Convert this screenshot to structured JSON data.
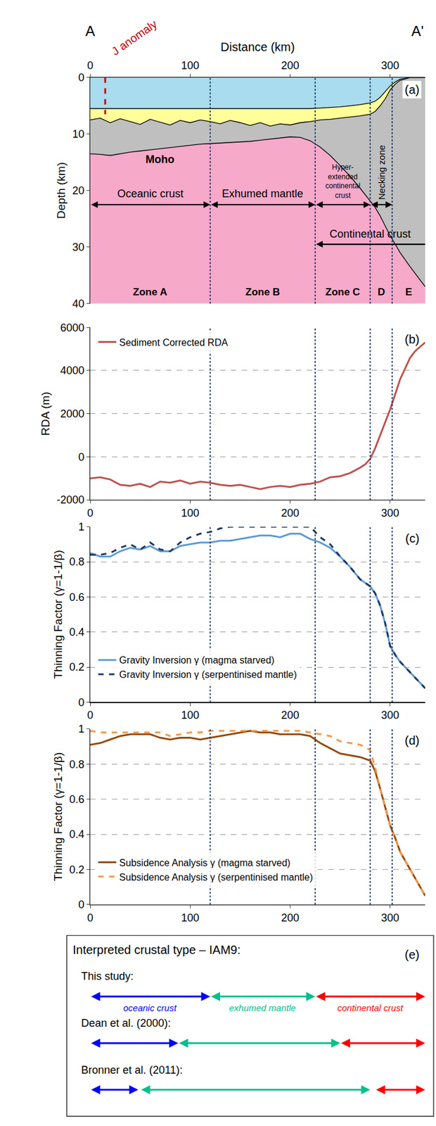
{
  "chart_data": [
    {
      "type": "section",
      "label": "(a)",
      "section": [
        "A",
        "A'"
      ],
      "x_label": "Distance (km)",
      "y_label": "Depth (km)",
      "xlim": [
        0,
        335
      ],
      "xticks": [
        0,
        100,
        200,
        300
      ],
      "ylim": [
        40,
        0
      ],
      "yticks": [
        0,
        10,
        20,
        30,
        40
      ],
      "grid": false,
      "color": "#f7a9c9",
      "x": [
        0,
        10,
        20,
        30,
        40,
        50,
        60,
        70,
        80,
        90,
        100,
        110,
        120,
        130,
        140,
        150,
        160,
        170,
        180,
        190,
        200,
        210,
        220,
        230,
        240,
        250,
        260,
        270,
        280,
        285,
        290,
        295,
        300,
        305,
        310,
        320,
        335
      ],
      "series": [
        {
          "color": "#a8dcee",
          "values": [
            5.5,
            5.5,
            5.5,
            5.5,
            5.5,
            5.5,
            5.5,
            5.5,
            5.5,
            5.5,
            5.5,
            5.5,
            5.5,
            5.5,
            5.5,
            5.5,
            5.5,
            5.5,
            5.5,
            5.5,
            5.5,
            5.5,
            5.5,
            5.4,
            5.3,
            5.2,
            5.0,
            4.8,
            4.5,
            4.2,
            3.5,
            2.5,
            1.5,
            0.8,
            0.3,
            0,
            0
          ]
        },
        {
          "color": "#ffff99",
          "values": [
            7.5,
            7.2,
            8.0,
            7.3,
            7.8,
            8.3,
            7.4,
            7.9,
            8.4,
            7.6,
            8.0,
            7.5,
            7.8,
            8.2,
            7.6,
            8.0,
            8.5,
            8.0,
            8.6,
            8.2,
            8.4,
            8.0,
            7.8,
            7.5,
            7.4,
            7.2,
            7.0,
            6.8,
            6.5,
            6.0,
            5.0,
            3.8,
            2.2,
            1.2,
            0.5,
            0,
            0
          ]
        },
        {
          "name": "Moho",
          "color": "#bfbfbf",
          "values": [
            13.5,
            13.6,
            13.8,
            13.5,
            13.2,
            13.0,
            12.8,
            12.6,
            12.4,
            12.2,
            12.0,
            11.8,
            11.7,
            11.6,
            11.5,
            11.4,
            11.3,
            11.1,
            10.9,
            10.7,
            10.5,
            10.6,
            11.2,
            12.3,
            13.8,
            15.6,
            17.5,
            19.6,
            21.8,
            23.0,
            24.5,
            26.2,
            28.0,
            29.5,
            31.0,
            33.5,
            37.0
          ]
        }
      ],
      "j_anomaly": {
        "label": "J anomaly",
        "x": 15,
        "depth": [
          0,
          6.5
        ],
        "color": "#c00000"
      },
      "domains": [
        {
          "label": "Oceanic crust",
          "from": 0,
          "to": 120
        },
        {
          "label": "Exhumed mantle",
          "from": 120,
          "to": 225
        },
        {
          "label": "Hyper-extended continental crust",
          "from": 225,
          "to": 280
        },
        {
          "label": "Necking zone",
          "from": 280,
          "to": 302
        }
      ],
      "continental_crust": {
        "label": "Continental crust",
        "from": 225,
        "to": 335
      },
      "zones": [
        {
          "label": "Zone A",
          "from": 0,
          "to": 120
        },
        {
          "label": "Zone B",
          "from": 120,
          "to": 225
        },
        {
          "label": "Zone C",
          "from": 225,
          "to": 280
        },
        {
          "label": "D",
          "from": 280,
          "to": 302
        },
        {
          "label": "E",
          "from": 302,
          "to": 335
        }
      ]
    },
    {
      "type": "line",
      "label": "(b)",
      "y_label": "RDA (m)",
      "xlim": [
        0,
        335
      ],
      "xticks": [
        0,
        100,
        200,
        300
      ],
      "ylim": [
        -2000,
        6000
      ],
      "yticks": [
        -2000,
        0,
        2000,
        4000,
        6000
      ],
      "grid": true,
      "legend": "top left",
      "x": [
        0,
        10,
        20,
        30,
        40,
        50,
        60,
        70,
        80,
        90,
        100,
        110,
        120,
        130,
        140,
        150,
        160,
        170,
        180,
        190,
        200,
        210,
        220,
        230,
        240,
        250,
        260,
        270,
        275,
        280,
        285,
        290,
        295,
        300,
        305,
        310,
        315,
        320,
        325,
        330,
        335
      ],
      "series": [
        {
          "name": "Sediment Corrected RDA",
          "color": "#c0504d",
          "line_style": "solid",
          "values": [
            -1000,
            -950,
            -1050,
            -1300,
            -1350,
            -1250,
            -1400,
            -1150,
            -1200,
            -1100,
            -1250,
            -1150,
            -1200,
            -1300,
            -1350,
            -1300,
            -1400,
            -1500,
            -1400,
            -1350,
            -1400,
            -1300,
            -1250,
            -1150,
            -950,
            -900,
            -750,
            -500,
            -350,
            -100,
            400,
            1000,
            1600,
            2200,
            2900,
            3600,
            4100,
            4600,
            4900,
            5100,
            5300
          ]
        }
      ]
    },
    {
      "type": "line",
      "label": "(c)",
      "y_label": "Thinning Factor (γ=1-1/β)",
      "xlim": [
        0,
        335
      ],
      "xticks": [
        0,
        100,
        200,
        300
      ],
      "ylim": [
        0,
        1
      ],
      "yticks": [
        0,
        0.2,
        0.4,
        0.6,
        0.8,
        1
      ],
      "grid": true,
      "legend": "bottom left",
      "x": [
        0,
        10,
        20,
        30,
        40,
        50,
        60,
        70,
        80,
        90,
        100,
        110,
        120,
        130,
        140,
        150,
        160,
        170,
        180,
        190,
        200,
        210,
        220,
        230,
        240,
        250,
        260,
        270,
        280,
        285,
        290,
        295,
        300,
        305,
        310,
        320,
        335
      ],
      "series": [
        {
          "name": "Gravity Inversion γ (magma starved)",
          "color": "#5b9bd5",
          "line_style": "solid",
          "values": [
            0.85,
            0.83,
            0.83,
            0.86,
            0.88,
            0.87,
            0.89,
            0.86,
            0.86,
            0.89,
            0.9,
            0.91,
            0.91,
            0.92,
            0.92,
            0.93,
            0.94,
            0.95,
            0.95,
            0.94,
            0.96,
            0.96,
            0.93,
            0.91,
            0.88,
            0.83,
            0.77,
            0.7,
            0.66,
            0.62,
            0.55,
            0.45,
            0.32,
            0.27,
            0.23,
            0.17,
            0.08
          ]
        },
        {
          "name": "Gravity Inversion γ (serpentinised mantle)",
          "color": "#1f3864",
          "line_style": "dash",
          "values": [
            0.84,
            0.84,
            0.85,
            0.88,
            0.9,
            0.87,
            0.91,
            0.87,
            0.86,
            0.91,
            0.94,
            0.96,
            0.97,
            0.99,
            1,
            1,
            1,
            1,
            1,
            1,
            1,
            1,
            1,
            0.94,
            0.9,
            0.83,
            0.77,
            0.7,
            0.66,
            0.62,
            0.55,
            0.45,
            0.32,
            0.27,
            0.23,
            0.17,
            0.08
          ]
        }
      ]
    },
    {
      "type": "line",
      "label": "(d)",
      "y_label": "Thinning Factor (γ=1-1/β)",
      "xlim": [
        0,
        335
      ],
      "xticks": [
        0,
        100,
        200,
        300
      ],
      "ylim": [
        0,
        1
      ],
      "yticks": [
        0,
        0.2,
        0.4,
        0.6,
        0.8,
        1
      ],
      "grid": true,
      "legend": "bottom left",
      "x": [
        0,
        10,
        20,
        30,
        40,
        50,
        60,
        70,
        80,
        90,
        100,
        110,
        120,
        130,
        140,
        150,
        160,
        170,
        180,
        190,
        200,
        210,
        220,
        230,
        240,
        250,
        260,
        270,
        280,
        285,
        290,
        295,
        300,
        305,
        310,
        320,
        335
      ],
      "series": [
        {
          "name": "Subsidence Analysis γ (magma starved)",
          "color": "#984807",
          "line_style": "solid",
          "values": [
            0.91,
            0.92,
            0.94,
            0.96,
            0.97,
            0.97,
            0.97,
            0.95,
            0.94,
            0.95,
            0.95,
            0.94,
            0.95,
            0.96,
            0.97,
            0.98,
            0.99,
            0.98,
            0.98,
            0.97,
            0.97,
            0.97,
            0.96,
            0.92,
            0.89,
            0.86,
            0.85,
            0.84,
            0.82,
            0.76,
            0.66,
            0.55,
            0.45,
            0.38,
            0.3,
            0.2,
            0.05
          ]
        },
        {
          "name": "Subsidence Analysis γ (serpentinised mantle)",
          "color": "#f79646",
          "line_style": "dash",
          "values": [
            0.99,
            0.98,
            0.98,
            0.98,
            0.98,
            0.98,
            0.98,
            0.98,
            0.96,
            0.97,
            0.98,
            0.98,
            0.99,
            0.99,
            0.99,
            0.99,
            0.99,
            0.99,
            0.99,
            0.99,
            0.99,
            0.99,
            0.98,
            0.97,
            0.96,
            0.93,
            0.92,
            0.91,
            0.88,
            0.78,
            0.66,
            0.55,
            0.45,
            0.38,
            0.3,
            0.2,
            0.05
          ]
        }
      ]
    },
    {
      "type": "crustal_types",
      "label": "(e)",
      "title": "Interpreted crustal type – IAM9:",
      "xlim": [
        0,
        335
      ],
      "tick_labels": false,
      "studies": [
        {
          "name": "This study:",
          "segments": [
            {
              "label": "oceanic crust",
              "from": 0,
              "to": 120,
              "color": "#0000ff"
            },
            {
              "label": "exhumed mantle",
              "from": 120,
              "to": 225,
              "color": "#00c08b"
            },
            {
              "label": "continental crust",
              "from": 225,
              "to": 335,
              "color": "#ff0000"
            }
          ]
        },
        {
          "name": "Dean et al. (2000):",
          "segments": [
            {
              "from": 0,
              "to": 88,
              "color": "#0000ff"
            },
            {
              "from": 88,
              "to": 250,
              "color": "#00c08b"
            },
            {
              "from": 250,
              "to": 335,
              "color": "#ff0000"
            }
          ]
        },
        {
          "name": "Bronner et al. (2011):",
          "segments": [
            {
              "from": 0,
              "to": 48,
              "color": "#0000ff"
            },
            {
              "from": 50,
              "to": 280,
              "color": "#00c08b"
            },
            {
              "from": 285,
              "to": 335,
              "color": "#ff0000"
            }
          ]
        }
      ]
    }
  ]
}
